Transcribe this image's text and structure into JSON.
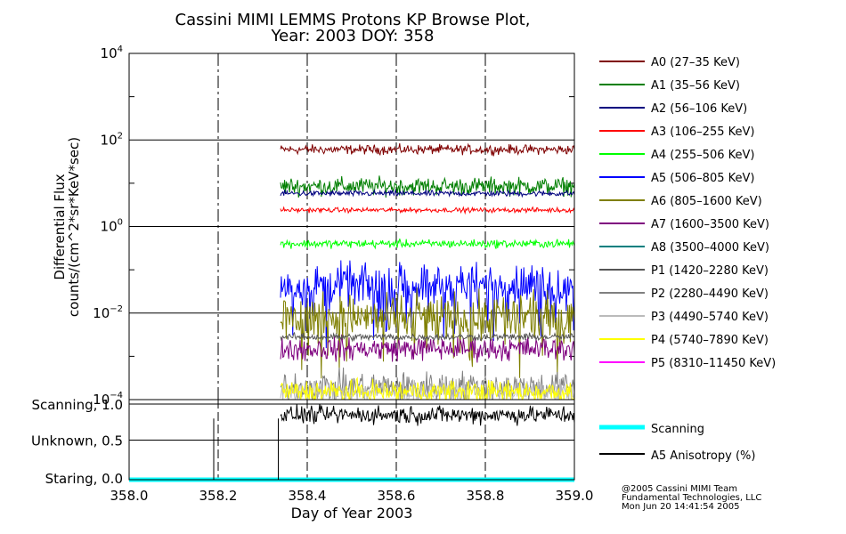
{
  "chart_data": [
    {
      "type": "line",
      "title": "Cassini MIMI LEMMS Protons KP Browse Plot,",
      "subtitle": "Year: 2003 DOY: 358",
      "xlabel": "",
      "ylabel": "Differential Flux",
      "ylabel2": "counts/(cm^2*sr*KeV*sec)",
      "yscale": "log",
      "ylim": [
        0.0001,
        10000
      ],
      "xlim": [
        358.0,
        359.0
      ],
      "ytick_labels": [
        {
          "base": "10",
          "exp": "4",
          "value": 10000
        },
        {
          "base": "10",
          "exp": "2",
          "value": 100
        },
        {
          "base": "10",
          "exp": "0",
          "value": 1
        },
        {
          "base": "10",
          "exp": "−2",
          "value": 0.01
        },
        {
          "base": "10",
          "exp": "−4",
          "value": 0.0001
        }
      ],
      "vertical_gridlines": [
        358.2,
        358.4,
        358.6,
        358.8
      ],
      "data_start": 358.34,
      "series": [
        {
          "name": "A0 (27–35 KeV)",
          "color": "#7f0000",
          "level": 60,
          "noise": 0.08
        },
        {
          "name": "A1 (35–56 KeV)",
          "color": "#007f00",
          "level": 8.5,
          "noise": 0.15
        },
        {
          "name": "A2 (56–106 KeV)",
          "color": "#00007f",
          "level": 5.8,
          "noise": 0.05
        },
        {
          "name": "A3 (106–255 KeV)",
          "color": "#ff0000",
          "level": 2.4,
          "noise": 0.04
        },
        {
          "name": "A4 (255–506 KeV)",
          "color": "#00ff00",
          "level": 0.4,
          "noise": 0.07
        },
        {
          "name": "A5 (506–805 KeV)",
          "color": "#0000ff",
          "level": 0.045,
          "noise": 0.35
        },
        {
          "name": "A6 (805–1600 KeV)",
          "color": "#7f7f00",
          "level": 0.008,
          "noise": 0.4
        },
        {
          "name": "A7 (1600–3500 KeV)",
          "color": "#7f007f",
          "level": 0.0015,
          "noise": 0.2
        },
        {
          "name": "A8 (3500–4000 KeV)",
          "color": "#007f7f",
          "level": null,
          "noise": 0
        },
        {
          "name": "P1 (1420–2280 KeV)",
          "color": "#555555",
          "level": 0.0028,
          "noise": 0.06
        },
        {
          "name": "P2 (2280–4490 KeV)",
          "color": "#808080",
          "level": 0.0002,
          "noise": 0.25
        },
        {
          "name": "P3 (4490–5740 KeV)",
          "color": "#bbbbbb",
          "level": 0.00015,
          "noise": 0.2
        },
        {
          "name": "P4 (5740–7890 KeV)",
          "color": "#ffff00",
          "level": 0.00015,
          "noise": 0.2
        },
        {
          "name": "P5 (8310–11450 KeV)",
          "color": "#ff00ff",
          "level": null,
          "noise": 0
        }
      ]
    },
    {
      "type": "line",
      "xlabel": "Day of Year 2003",
      "ylim": [
        0.0,
        1.0
      ],
      "xlim": [
        358.0,
        359.0
      ],
      "ytick_labels": [
        "Scanning, 1.0",
        "Unknown, 0.5",
        "Staring, 0.0"
      ],
      "xtick_labels": [
        "358.0",
        "358.2",
        "358.4",
        "358.6",
        "358.8",
        "359.0"
      ],
      "xtick_values": [
        358.0,
        358.2,
        358.4,
        358.6,
        358.8,
        359.0
      ],
      "series": [
        {
          "name": "Scanning",
          "color": "#00ffff",
          "value": 0.0
        },
        {
          "name": "A5 Anisotropy (%)",
          "color": "#000000",
          "level": 0.85,
          "noise": 0.09,
          "spikes": [
            358.19,
            358.335
          ]
        }
      ]
    }
  ],
  "credits": {
    "line1": "@2005 Cassini MIMI Team",
    "line2": "Fundamental Technologies, LLC",
    "line3": "Mon Jun 20 14:41:54 2005"
  }
}
